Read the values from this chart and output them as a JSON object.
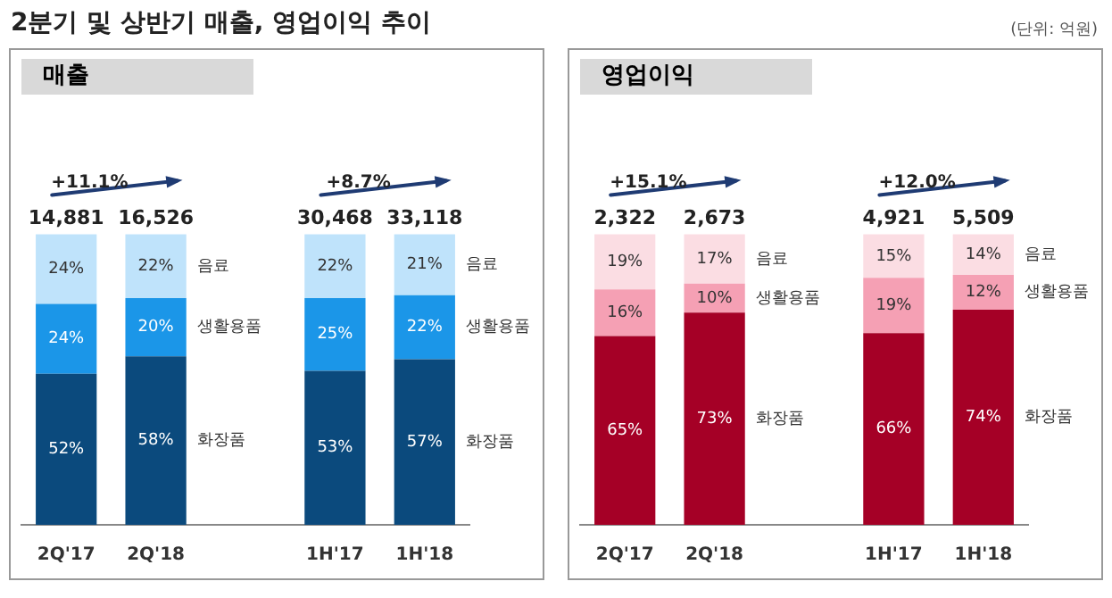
{
  "chart_data": [
    {
      "type": "bar",
      "title": "매출",
      "stacked": true,
      "legend": false,
      "categories": [
        "2Q'17",
        "2Q'18",
        null,
        "1H'17",
        "1H'18"
      ],
      "series": [
        {
          "name": "화장품",
          "color": "#0b4a7d",
          "values": [
            52,
            58,
            null,
            53,
            57
          ],
          "value_labels": [
            "52%",
            "58%",
            null,
            "53%",
            "57%"
          ]
        },
        {
          "name": "생활용품",
          "color": "#1b96e8",
          "values": [
            24,
            20,
            null,
            25,
            22
          ],
          "value_labels": [
            "24%",
            "20%",
            null,
            "25%",
            "22%"
          ]
        },
        {
          "name": "음료",
          "color": "#bfe3fb",
          "values": [
            24,
            22,
            null,
            22,
            21
          ],
          "value_labels": [
            "24%",
            "22%",
            null,
            "22%",
            "21%"
          ]
        }
      ],
      "annotations": [
        "2분기 및 상반기 매출, 영업이익 추이",
        "+11.1%",
        "+8.7%",
        {
          "text": "14,881",
          "x": "2Q'17",
          "y": 100
        },
        {
          "text": "16,526",
          "x": "2Q'18",
          "y": 100
        },
        {
          "text": "30,468",
          "x": "1H'17",
          "y": 100
        },
        {
          "text": "33,118",
          "x": "1H'18",
          "y": 100
        }
      ]
    },
    {
      "type": "bar",
      "title": "영업이익",
      "stacked": true,
      "legend": false,
      "categories": [
        "2Q'17",
        "2Q'18",
        null,
        "1H'17",
        "1H'18"
      ],
      "series": [
        {
          "name": "화장품",
          "color": "#a50026",
          "values": [
            65,
            73,
            null,
            66,
            74
          ],
          "value_labels": [
            "65%",
            "73%",
            null,
            "66%",
            "74%"
          ]
        },
        {
          "name": "생활용품",
          "color": "#f5a0b4",
          "values": [
            16,
            10,
            null,
            19,
            12
          ],
          "value_labels": [
            "16%",
            "10%",
            null,
            "19%",
            "12%"
          ]
        },
        {
          "name": "음료",
          "color": "#fbdde3",
          "values": [
            19,
            17,
            null,
            15,
            14
          ],
          "value_labels": [
            "19%",
            "17%",
            null,
            "15%",
            "14%"
          ]
        }
      ],
      "annotations": [
        "(단위: 억원)",
        "+15.1%",
        "+12.0%",
        {
          "text": "2,322",
          "x": "2Q'17",
          "y": 100
        },
        {
          "text": "2,673",
          "x": "2Q'18",
          "y": 100
        },
        {
          "text": "4,921",
          "x": "1H'17",
          "y": 100
        },
        {
          "text": "5,509",
          "x": "1H'18",
          "y": 100
        }
      ]
    }
  ]
}
